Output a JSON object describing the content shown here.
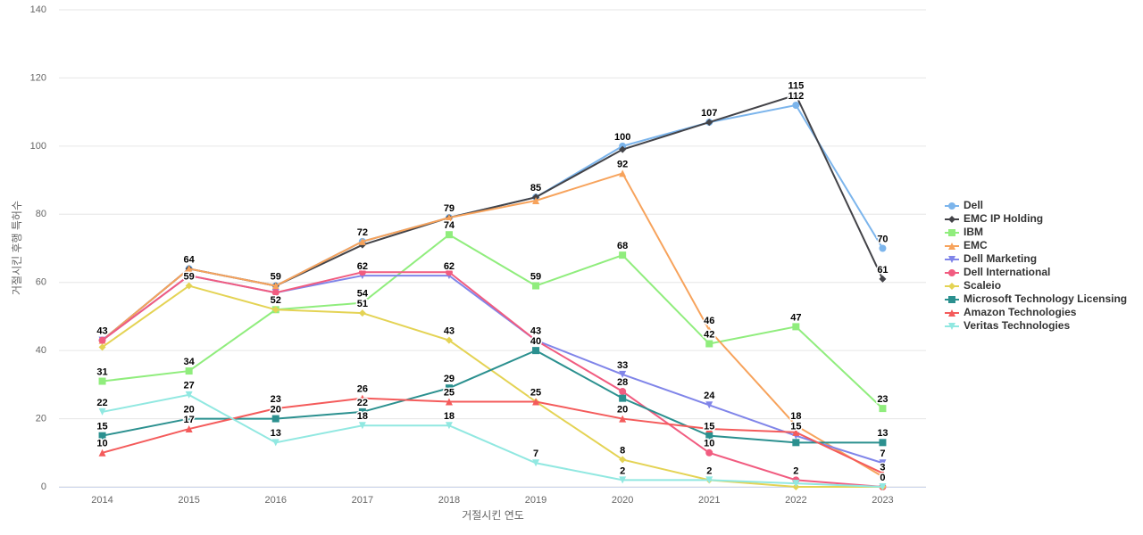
{
  "chart_data": {
    "type": "line",
    "x_label": "거절시킨 연도",
    "y_label": "거절시킨 후행 특허수",
    "categories": [
      "2014",
      "2015",
      "2016",
      "2017",
      "2018",
      "2019",
      "2020",
      "2021",
      "2022",
      "2023"
    ],
    "ylim": [
      0,
      140
    ],
    "yticks": [
      0,
      20,
      40,
      60,
      80,
      100,
      120,
      140
    ],
    "grid": true,
    "legend": "right",
    "series": [
      {
        "name": "Dell",
        "color": "#7cb5ec",
        "marker": "circle",
        "values": [
          43,
          64,
          59,
          72,
          79,
          85,
          100,
          107,
          112,
          70
        ]
      },
      {
        "name": "EMC IP Holding",
        "color": "#434348",
        "marker": "diamond",
        "values": [
          43,
          64,
          59,
          71,
          79,
          85,
          99,
          107,
          115,
          61
        ]
      },
      {
        "name": "IBM",
        "color": "#90ed7d",
        "marker": "square",
        "values": [
          31,
          34,
          52,
          54,
          74,
          59,
          68,
          42,
          47,
          23
        ]
      },
      {
        "name": "EMC",
        "color": "#f7a35c",
        "marker": "triangle",
        "values": [
          43,
          64,
          59,
          72,
          79,
          84,
          92,
          46,
          18,
          3
        ]
      },
      {
        "name": "Dell Marketing",
        "color": "#8085e9",
        "marker": "triangle-down",
        "values": [
          43,
          62,
          57,
          62,
          62,
          43,
          33,
          24,
          15,
          7
        ]
      },
      {
        "name": "Dell International",
        "color": "#f15c80",
        "marker": "circle",
        "values": [
          43,
          62,
          57,
          63,
          63,
          43,
          28,
          10,
          2,
          0
        ]
      },
      {
        "name": "Scaleio",
        "color": "#e4d354",
        "marker": "diamond",
        "values": [
          41,
          59,
          52,
          51,
          43,
          25,
          8,
          2,
          0,
          0
        ]
      },
      {
        "name": "Microsoft Technology Licensing",
        "color": "#2b908f",
        "marker": "square",
        "values": [
          15,
          20,
          20,
          22,
          29,
          40,
          26,
          15,
          13,
          13
        ]
      },
      {
        "name": "Amazon Technologies",
        "color": "#f45b5b",
        "marker": "triangle",
        "values": [
          10,
          17,
          23,
          26,
          25,
          25,
          20,
          17,
          16,
          4
        ]
      },
      {
        "name": "Veritas Technologies",
        "color": "#91e8e1",
        "marker": "triangle-down",
        "values": [
          22,
          27,
          13,
          18,
          18,
          7,
          2,
          2,
          1,
          0
        ]
      }
    ]
  }
}
